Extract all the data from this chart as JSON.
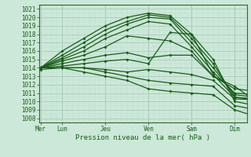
{
  "title": "",
  "xlabel": "Pression niveau de la mer( hPa )",
  "ylabel": "",
  "bg_color": "#cce8d8",
  "grid_major_color": "#aaccbb",
  "grid_minor_color": "#bbddcc",
  "line_color": "#1a5c1a",
  "ylim": [
    1007.5,
    1021.5
  ],
  "yticks": [
    1008,
    1009,
    1010,
    1011,
    1012,
    1013,
    1014,
    1015,
    1016,
    1017,
    1018,
    1019,
    1020,
    1021
  ],
  "day_labels": [
    "Mer",
    "Lun",
    "Jeu",
    "Ven",
    "Sam",
    "Dim"
  ],
  "day_positions": [
    0,
    24,
    72,
    120,
    168,
    216
  ],
  "xlim": [
    -2,
    230
  ],
  "lines": [
    {
      "x": [
        0,
        24,
        48,
        72,
        96,
        120,
        144,
        168,
        192,
        216,
        240
      ],
      "y": [
        1014.0,
        1016.0,
        1017.5,
        1019.0,
        1020.0,
        1020.5,
        1020.2,
        1018.0,
        1015.0,
        1010.0,
        1009.5
      ]
    },
    {
      "x": [
        0,
        24,
        48,
        72,
        96,
        120,
        144,
        168,
        192,
        216,
        240
      ],
      "y": [
        1014.0,
        1015.5,
        1017.0,
        1018.5,
        1019.5,
        1020.3,
        1020.0,
        1017.5,
        1014.5,
        1010.5,
        1010.2
      ]
    },
    {
      "x": [
        0,
        24,
        48,
        72,
        96,
        120,
        144,
        168,
        192,
        216,
        240
      ],
      "y": [
        1014.0,
        1015.2,
        1016.5,
        1018.0,
        1019.2,
        1020.0,
        1019.8,
        1017.0,
        1014.0,
        1010.8,
        1010.5
      ]
    },
    {
      "x": [
        0,
        24,
        48,
        72,
        96,
        120,
        144,
        168,
        192,
        216,
        240
      ],
      "y": [
        1014.0,
        1015.0,
        1016.0,
        1017.5,
        1018.5,
        1019.5,
        1019.2,
        1016.5,
        1013.5,
        1011.0,
        1010.8
      ]
    },
    {
      "x": [
        0,
        24,
        48,
        72,
        96,
        120,
        144,
        168,
        192,
        216,
        240
      ],
      "y": [
        1014.0,
        1014.8,
        1015.5,
        1016.5,
        1017.8,
        1017.5,
        1017.2,
        1016.0,
        1013.0,
        1011.5,
        1011.2
      ]
    },
    {
      "x": [
        0,
        24,
        48,
        72,
        96,
        120,
        144,
        168,
        192,
        216,
        240
      ],
      "y": [
        1014.0,
        1014.5,
        1015.0,
        1015.5,
        1015.8,
        1015.2,
        1015.5,
        1015.5,
        1013.0,
        1011.8,
        1010.0
      ]
    },
    {
      "x": [
        0,
        24,
        48,
        72,
        96,
        120,
        144,
        168,
        192,
        216,
        240
      ],
      "y": [
        1014.0,
        1014.2,
        1014.5,
        1014.8,
        1015.0,
        1014.5,
        1018.2,
        1018.0,
        1013.2,
        1010.5,
        1010.3
      ]
    },
    {
      "x": [
        0,
        24,
        48,
        72,
        96,
        120,
        144,
        168,
        192,
        216,
        240
      ],
      "y": [
        1013.8,
        1014.0,
        1014.0,
        1013.8,
        1013.5,
        1013.8,
        1013.5,
        1013.2,
        1012.5,
        1010.3,
        1010.2
      ]
    },
    {
      "x": [
        0,
        24,
        48,
        72,
        96,
        120,
        144,
        168,
        192,
        216,
        240
      ],
      "y": [
        1014.0,
        1014.0,
        1014.0,
        1013.5,
        1013.0,
        1012.5,
        1012.2,
        1012.0,
        1011.8,
        1009.5,
        1009.0
      ]
    },
    {
      "x": [
        0,
        24,
        48,
        72,
        96,
        120,
        144,
        168,
        192,
        216,
        240
      ],
      "y": [
        1014.0,
        1014.0,
        1013.5,
        1013.0,
        1012.5,
        1011.5,
        1011.2,
        1011.0,
        1010.8,
        1009.0,
        1008.2
      ]
    }
  ],
  "marker_size": 1.8,
  "linewidth": 0.9,
  "tick_fontsize": 5.5,
  "xlabel_fontsize": 6.5
}
